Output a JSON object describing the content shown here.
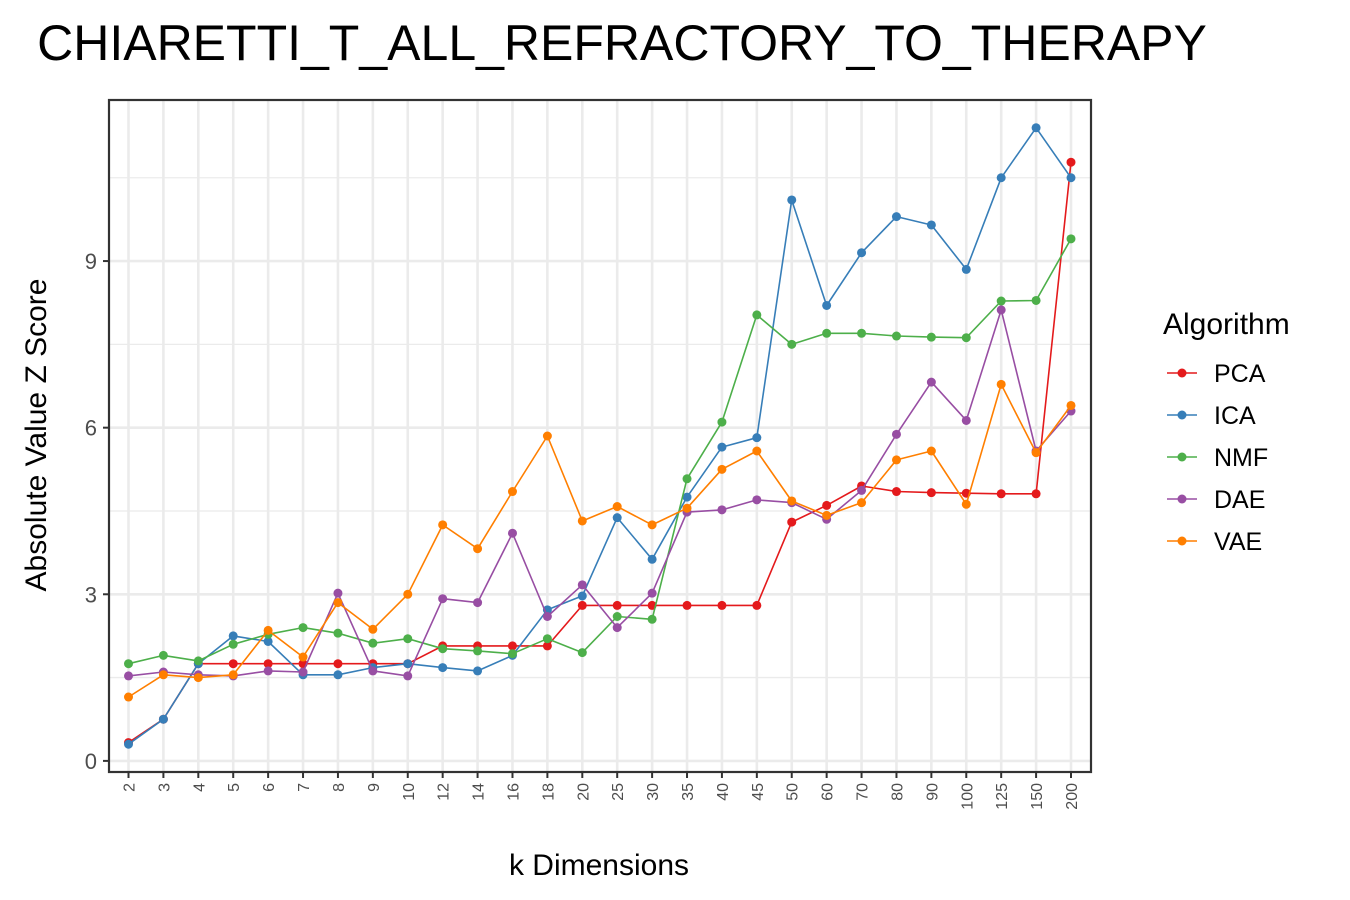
{
  "chart_data": {
    "type": "line",
    "title": "CHIARETTI_T_ALL_REFRACTORY_TO_THERAPY",
    "xlabel": "k Dimensions",
    "ylabel": "Absolute Value Z Score",
    "x": [
      "2",
      "3",
      "4",
      "5",
      "6",
      "7",
      "8",
      "9",
      "10",
      "12",
      "14",
      "16",
      "18",
      "20",
      "25",
      "30",
      "35",
      "40",
      "45",
      "50",
      "60",
      "70",
      "80",
      "90",
      "100",
      "125",
      "150",
      "200"
    ],
    "yticks": [
      0,
      3,
      6,
      9
    ],
    "ylim": [
      -0.2,
      11.9
    ],
    "grid": true,
    "legend": {
      "title": "Algorithm",
      "position": "right"
    },
    "series": [
      {
        "name": "PCA",
        "color": "#e41a1c",
        "values": [
          0.33,
          0.75,
          1.75,
          1.75,
          1.75,
          1.75,
          1.75,
          1.75,
          1.75,
          2.07,
          2.07,
          2.07,
          2.07,
          2.8,
          2.8,
          2.8,
          2.8,
          2.8,
          2.8,
          4.3,
          4.6,
          4.95,
          4.85,
          4.83,
          4.82,
          4.81,
          4.81,
          10.78
        ]
      },
      {
        "name": "ICA",
        "color": "#377eb8",
        "values": [
          0.3,
          0.75,
          1.75,
          2.25,
          2.15,
          1.55,
          1.55,
          1.68,
          1.75,
          1.68,
          1.62,
          1.9,
          2.72,
          2.97,
          4.38,
          3.63,
          4.75,
          5.65,
          5.82,
          10.1,
          8.2,
          9.15,
          9.8,
          9.65,
          8.85,
          10.5,
          11.4,
          10.5
        ]
      },
      {
        "name": "NMF",
        "color": "#4daf4a",
        "values": [
          1.75,
          1.9,
          1.8,
          2.1,
          2.28,
          2.4,
          2.3,
          2.12,
          2.2,
          2.02,
          1.98,
          1.93,
          2.2,
          1.95,
          2.6,
          2.55,
          5.08,
          6.1,
          8.03,
          7.5,
          7.7,
          7.7,
          7.65,
          7.63,
          7.62,
          8.28,
          8.29,
          9.4
        ]
      },
      {
        "name": "DAE",
        "color": "#984ea3",
        "values": [
          1.53,
          1.6,
          1.55,
          1.53,
          1.62,
          1.6,
          3.02,
          1.62,
          1.53,
          2.92,
          2.85,
          4.1,
          2.6,
          3.17,
          2.4,
          3.02,
          4.48,
          4.52,
          4.7,
          4.65,
          4.35,
          4.87,
          5.88,
          6.82,
          6.13,
          8.12,
          5.58,
          6.3
        ]
      },
      {
        "name": "VAE",
        "color": "#ff7f00",
        "values": [
          1.15,
          1.55,
          1.5,
          1.55,
          2.35,
          1.87,
          2.85,
          2.37,
          3.0,
          4.25,
          3.82,
          4.85,
          5.85,
          4.32,
          4.58,
          4.25,
          4.55,
          5.25,
          5.58,
          4.68,
          4.42,
          4.65,
          5.42,
          5.58,
          4.62,
          6.78,
          5.55,
          6.4
        ]
      }
    ]
  }
}
